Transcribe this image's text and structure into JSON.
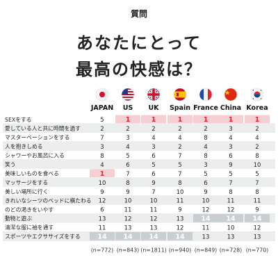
{
  "header": {
    "label": "質問",
    "title_line1": "あなたにとって",
    "title_line2": "最高の快感は？"
  },
  "colors": {
    "highlight_one": "#f6cfd2",
    "highlight_one_text": "#e2233b",
    "highlight_fourteen": "#c9cfd0",
    "row_alt": "#eceeee",
    "row_base": "#ffffff"
  },
  "chart_data": {
    "type": "table",
    "columns": [
      {
        "name": "JAPAN",
        "flag": "japan-flag-icon"
      },
      {
        "name": "US",
        "flag": "us-flag-icon"
      },
      {
        "name": "UK",
        "flag": "uk-flag-icon"
      },
      {
        "name": "Spain",
        "flag": "spain-flag-icon"
      },
      {
        "name": "France",
        "flag": "france-flag-icon"
      },
      {
        "name": "China",
        "flag": "china-flag-icon"
      },
      {
        "name": "Korea",
        "flag": "korea-flag-icon"
      }
    ],
    "rows": [
      {
        "label": "SEXをする",
        "values": [
          5,
          1,
          1,
          1,
          1,
          1,
          1
        ]
      },
      {
        "label": "愛している人と共に時間を過す",
        "values": [
          2,
          2,
          2,
          2,
          2,
          3,
          2
        ]
      },
      {
        "label": "マスターベーションをする",
        "values": [
          7,
          3,
          4,
          4,
          8,
          4,
          4
        ]
      },
      {
        "label": "人を抱きしめる",
        "values": [
          3,
          4,
          3,
          2,
          4,
          3,
          2
        ]
      },
      {
        "label": "シャワーやお風呂に入る",
        "values": [
          8,
          5,
          6,
          7,
          8,
          6,
          8
        ]
      },
      {
        "label": "笑う",
        "values": [
          4,
          6,
          5,
          5,
          3,
          9,
          10
        ]
      },
      {
        "label": "美味しいものを食べる",
        "values": [
          1,
          7,
          6,
          7,
          5,
          5,
          5
        ]
      },
      {
        "label": "マッサージをする",
        "values": [
          10,
          8,
          9,
          8,
          6,
          7,
          7
        ]
      },
      {
        "label": "美しい場所に行く",
        "values": [
          9,
          9,
          7,
          10,
          9,
          8,
          8
        ]
      },
      {
        "label": "きれいなシーツのベッドに横たわる",
        "values": [
          12,
          10,
          10,
          11,
          10,
          11,
          11
        ]
      },
      {
        "label": "のどの渇きをいやす",
        "values": [
          6,
          11,
          11,
          9,
          12,
          12,
          9
        ]
      },
      {
        "label": "動物と遊ぶ",
        "values": [
          13,
          12,
          12,
          13,
          14,
          14,
          14
        ]
      },
      {
        "label": "清潔な服に袖を通す",
        "values": [
          11,
          13,
          13,
          12,
          11,
          10,
          12
        ]
      },
      {
        "label": "スポーツやエクササイズをする",
        "values": [
          14,
          14,
          14,
          14,
          13,
          13,
          13
        ]
      }
    ],
    "sample_sizes": [
      "(n=772)",
      "(n=843)",
      "(n=1811)",
      "(n=940)",
      "(n=849)",
      "(n=728)",
      "(n=770)"
    ]
  }
}
